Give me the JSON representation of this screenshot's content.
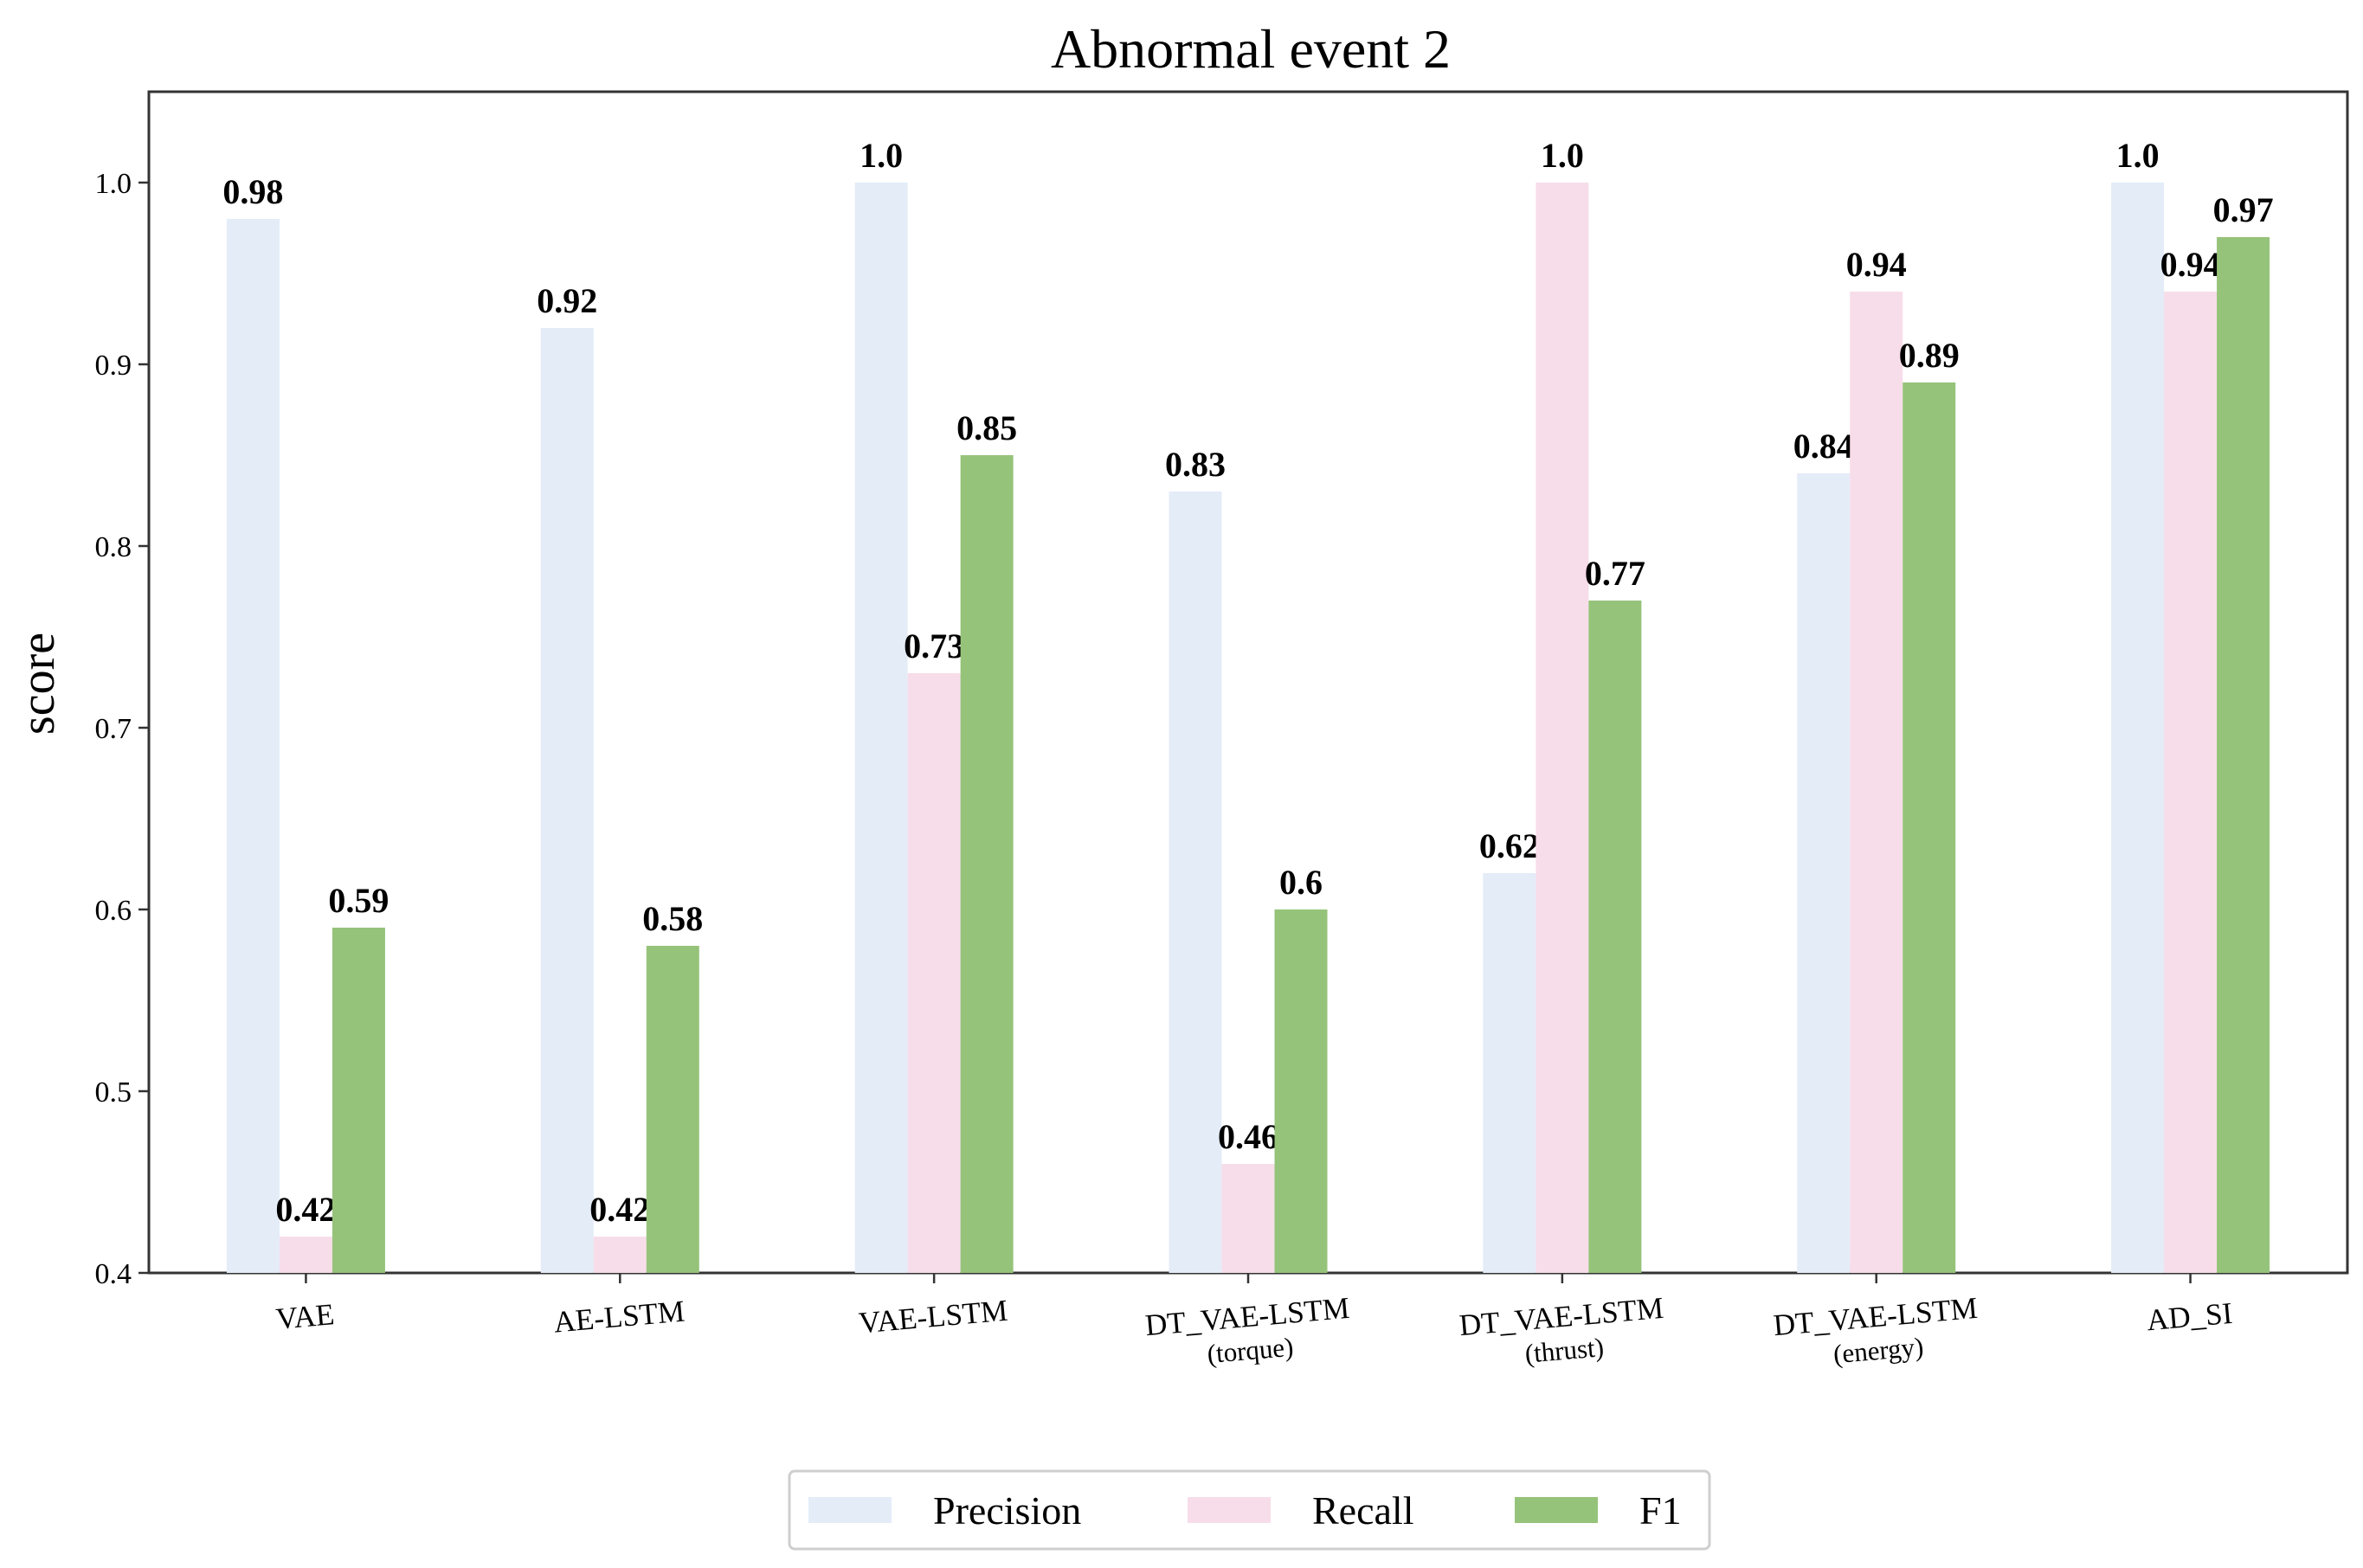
{
  "chart_data": {
    "type": "bar",
    "title": "Abnormal event 2",
    "xlabel": "",
    "ylabel": "score",
    "ylim": [
      0.4,
      1.05
    ],
    "yticks": [
      "0.4",
      "0.5",
      "0.6",
      "0.7",
      "0.8",
      "0.9",
      "1.0"
    ],
    "categories": [
      [
        "VAE"
      ],
      [
        "AE-LSTM"
      ],
      [
        "VAE-LSTM"
      ],
      [
        "DT_VAE-LSTM",
        "(torque)"
      ],
      [
        "DT_VAE-LSTM",
        "(thrust)"
      ],
      [
        "DT_VAE-LSTM",
        "(energy)"
      ],
      [
        "AD_SI"
      ]
    ],
    "series": [
      {
        "name": "Precision",
        "color": "#e4ecf8",
        "values": [
          0.98,
          0.92,
          1.0,
          0.83,
          0.62,
          0.84,
          1.0
        ],
        "labels": [
          "0.98",
          "0.92",
          "1.0",
          "0.83",
          "0.62",
          "0.84",
          "1.0"
        ]
      },
      {
        "name": "Recall",
        "color": "#f7dde9",
        "values": [
          0.42,
          0.42,
          0.73,
          0.46,
          1.0,
          0.94,
          0.94
        ],
        "labels": [
          "0.42",
          "0.42",
          "0.73",
          "0.46",
          "1.0",
          "0.94",
          "0.94"
        ]
      },
      {
        "name": "F1",
        "color": "#96c37a",
        "values": [
          0.59,
          0.58,
          0.85,
          0.6,
          0.77,
          0.89,
          0.97
        ],
        "labels": [
          "0.59",
          "0.58",
          "0.85",
          "0.6",
          "0.77",
          "0.89",
          "0.97"
        ]
      }
    ],
    "grid": false,
    "legend": "bottom-center"
  }
}
